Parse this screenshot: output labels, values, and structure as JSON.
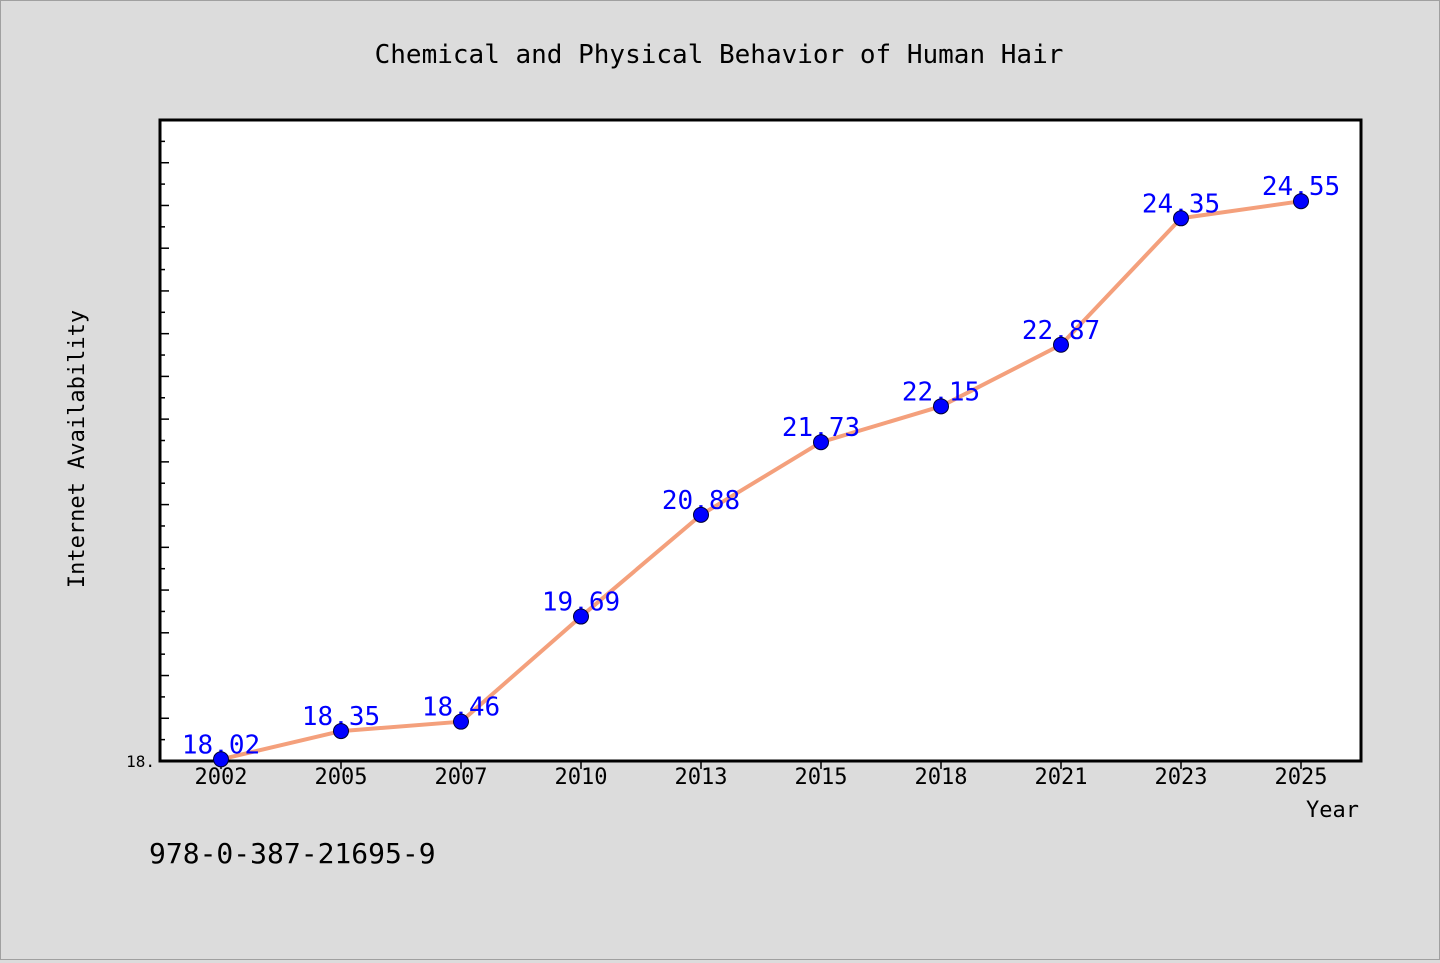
{
  "colors": {
    "background": "#dcdcdc",
    "plot_background": "#ffffff",
    "line": "#f4a07c",
    "marker": "#0000ff",
    "label": "#0000ff"
  },
  "footer_text": "978-0-387-21695-9",
  "chart_data": {
    "type": "line",
    "title": "Chemical and Physical Behavior of Human Hair",
    "xlabel": "Year",
    "ylabel": "Internet Availability",
    "categories": [
      "2002",
      "2005",
      "2007",
      "2010",
      "2013",
      "2015",
      "2018",
      "2021",
      "2023",
      "2025"
    ],
    "series": [
      {
        "values": [
          18.02,
          18.35,
          18.46,
          19.69,
          20.88,
          21.73,
          22.15,
          22.87,
          24.35,
          24.55
        ],
        "labels": [
          "18.02",
          "18.35",
          "18.46",
          "19.69",
          "20.88",
          "21.73",
          "22.15",
          "22.87",
          "24.35",
          "24.55"
        ]
      }
    ],
    "ylim": [
      18.0,
      25.5
    ],
    "y_tick_label": "18.",
    "grid": false,
    "legend": "none"
  }
}
